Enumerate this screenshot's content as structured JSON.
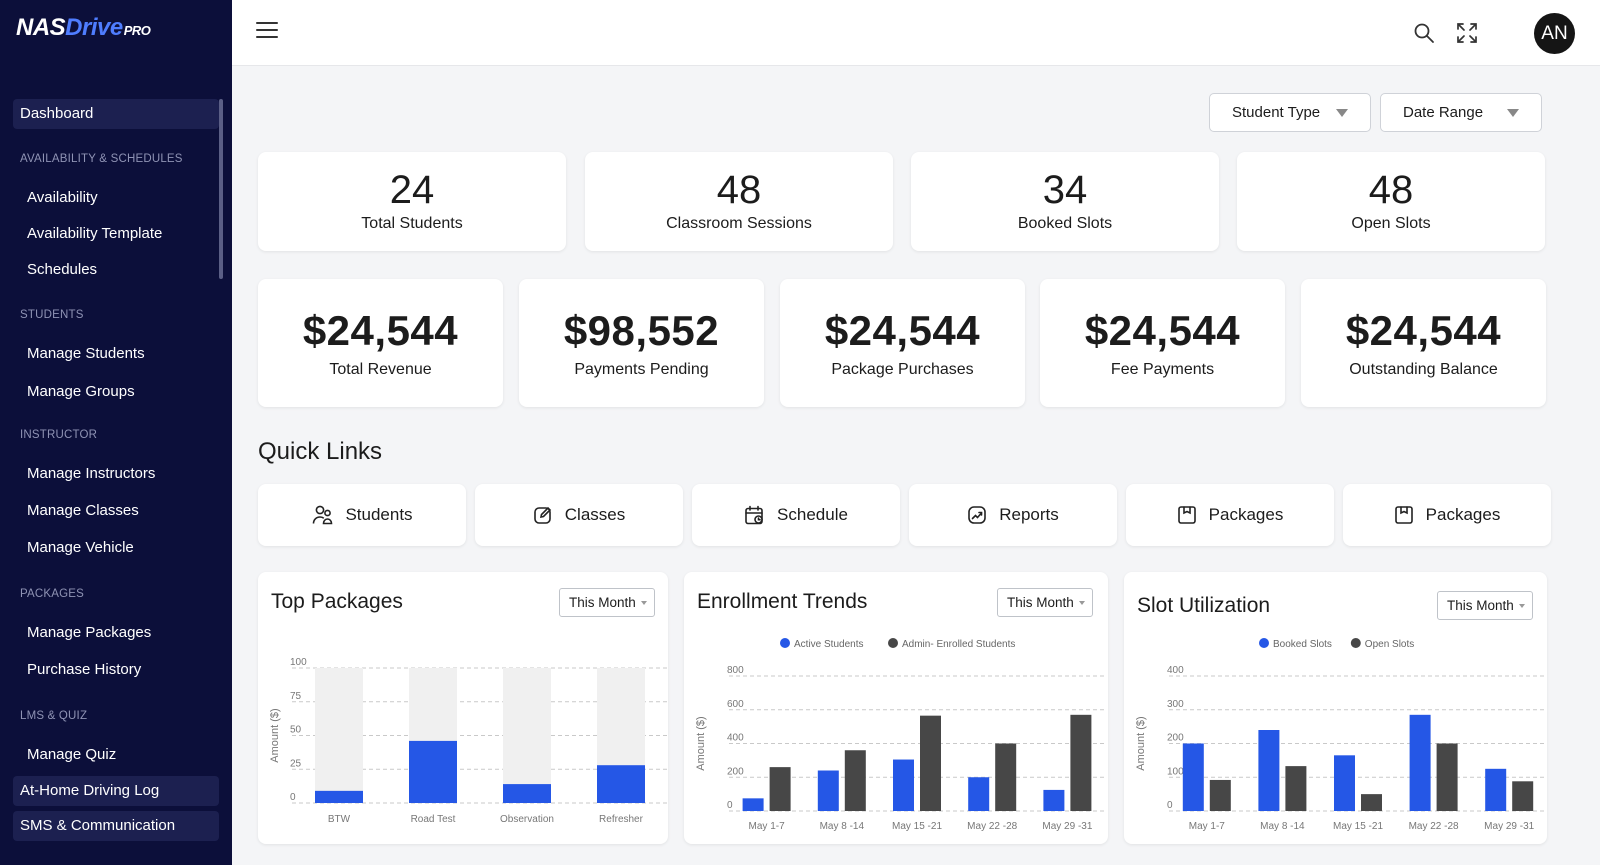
{
  "brand": {
    "logo_a": "NAS",
    "logo_b": "Drive",
    "logo_c": "PRO"
  },
  "sidebar": {
    "dashboard": "Dashboard",
    "sections": [
      {
        "title": "AVAILABILITY & SCHEDULES",
        "items": [
          "Availability",
          "Availability Template",
          "Schedules"
        ]
      },
      {
        "title": "STUDENTS",
        "items": [
          "Manage Students",
          "Manage Groups"
        ]
      },
      {
        "title": "INSTRUCTOR",
        "items": [
          "Manage Instructors",
          "Manage Classes",
          "Manage Vehicle"
        ]
      },
      {
        "title": "PACKAGES",
        "items": [
          "Manage Packages",
          "Purchase History"
        ]
      },
      {
        "title": "LMS & QUIZ",
        "items": [
          "Manage Quiz"
        ]
      }
    ],
    "bottom_items": [
      "At-Home Driving Log",
      "SMS & Communication"
    ]
  },
  "header": {
    "avatar_initials": "AN",
    "icons": [
      "menu-icon",
      "search-icon",
      "fullscreen-icon"
    ]
  },
  "filters": {
    "student_type": "Student Type",
    "date_range": "Date Range"
  },
  "stats": [
    {
      "value": "24",
      "label": "Total Students"
    },
    {
      "value": "48",
      "label": "Classroom Sessions"
    },
    {
      "value": "34",
      "label": "Booked Slots"
    },
    {
      "value": "48",
      "label": "Open Slots"
    }
  ],
  "money": [
    {
      "value": "$24,544",
      "label": "Total Revenue"
    },
    {
      "value": "$98,552",
      "label": "Payments Pending"
    },
    {
      "value": "$24,544",
      "label": "Package Purchases"
    },
    {
      "value": "$24,544",
      "label": "Fee Payments"
    },
    {
      "value": "$24,544",
      "label": "Outstanding Balance"
    }
  ],
  "quick_links": {
    "title": "Quick Links",
    "items": [
      {
        "label": "Students",
        "icon": "students-icon"
      },
      {
        "label": "Classes",
        "icon": "edit-icon"
      },
      {
        "label": "Schedule",
        "icon": "calendar-icon"
      },
      {
        "label": "Reports",
        "icon": "reports-icon"
      },
      {
        "label": "Packages",
        "icon": "package-icon"
      },
      {
        "label": "Packages",
        "icon": "package-icon"
      }
    ]
  },
  "panels": {
    "top_packages": {
      "title": "Top Packages",
      "period": "This Month"
    },
    "enrollment_trends": {
      "title": "Enrollment Trends",
      "period": "This Month"
    },
    "slot_utilization": {
      "title": "Slot Utilization",
      "period": "This Month"
    }
  },
  "colors": {
    "sidebar": "#0c0f3a",
    "blue": "#2557e6",
    "dark": "#474747",
    "track": "#f0f0f0"
  },
  "chart_data": [
    {
      "type": "bar",
      "title": "Top Packages",
      "ylabel": "Amount ($)",
      "ylim": [
        0,
        100
      ],
      "yticks": [
        0,
        25,
        50,
        75,
        100
      ],
      "categories": [
        "BTW",
        "Road Test",
        "Observation",
        "Refresher"
      ],
      "values": [
        9,
        46,
        14,
        28
      ]
    },
    {
      "type": "bar",
      "title": "Enrollment Trends",
      "ylabel": "Amount ($)",
      "ylim": [
        0,
        800
      ],
      "yticks": [
        0,
        200,
        400,
        600,
        800
      ],
      "categories": [
        "May 1-7",
        "May 8 -14",
        "May 15 -21",
        "May 22 -28",
        "May 29 -31"
      ],
      "series": [
        {
          "name": "Active Students",
          "values": [
            75,
            240,
            305,
            200,
            125
          ]
        },
        {
          "name": "Admin- Enrolled Students",
          "values": [
            260,
            360,
            565,
            400,
            570
          ]
        }
      ]
    },
    {
      "type": "bar",
      "title": "Slot Utilization",
      "ylabel": "Amount ($)",
      "ylim": [
        0,
        400
      ],
      "yticks": [
        0,
        100,
        200,
        300,
        400
      ],
      "categories": [
        "May 1-7",
        "May 8 -14",
        "May 15 -21",
        "May 22 -28",
        "May 29 -31"
      ],
      "series": [
        {
          "name": "Booked Slots",
          "values": [
            200,
            240,
            165,
            285,
            125
          ]
        },
        {
          "name": "Open Slots",
          "values": [
            92,
            133,
            50,
            200,
            88
          ]
        }
      ]
    }
  ]
}
